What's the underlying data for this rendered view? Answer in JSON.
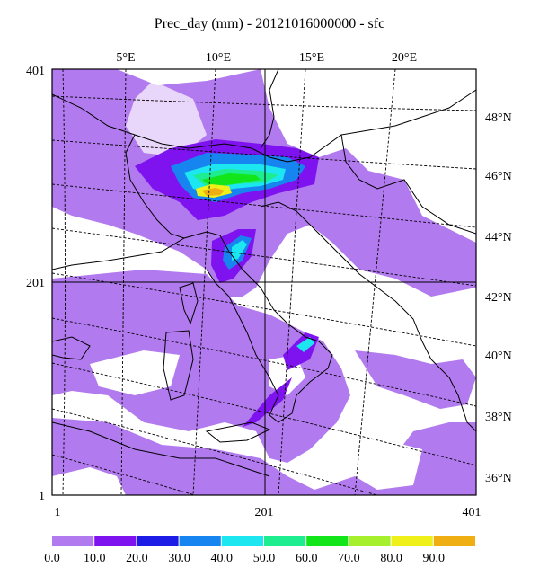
{
  "title": "Prec_day (mm) - 20121016000000 - sfc",
  "lon_labels": [
    "5°E",
    "10°E",
    "15°E",
    "20°E"
  ],
  "lat_labels": [
    "48°N",
    "46°N",
    "44°N",
    "42°N",
    "40°N",
    "38°N",
    "36°N"
  ],
  "grid_y_labels": [
    "401",
    "201",
    "1"
  ],
  "grid_x_labels": [
    "1",
    "201",
    "401"
  ],
  "colorbar": {
    "colors": [
      "#b27aef",
      "#7f13ef",
      "#1c1ce6",
      "#1785ef",
      "#1ce6ef",
      "#1ded8f",
      "#12e61a",
      "#a6ef2c",
      "#efef1a",
      "#efae12"
    ],
    "labels": [
      "0.0",
      "10.0",
      "20.0",
      "30.0",
      "40.0",
      "50.0",
      "60.0",
      "70.0",
      "80.0",
      "90.0"
    ]
  },
  "colors": {
    "light_precip": "#b27aef",
    "purple": "#7f13ef",
    "blue": "#1785ef",
    "cyan": "#1ce6ef",
    "green": "#12e61a",
    "yellow": "#efef1a",
    "orange": "#efae12"
  }
}
